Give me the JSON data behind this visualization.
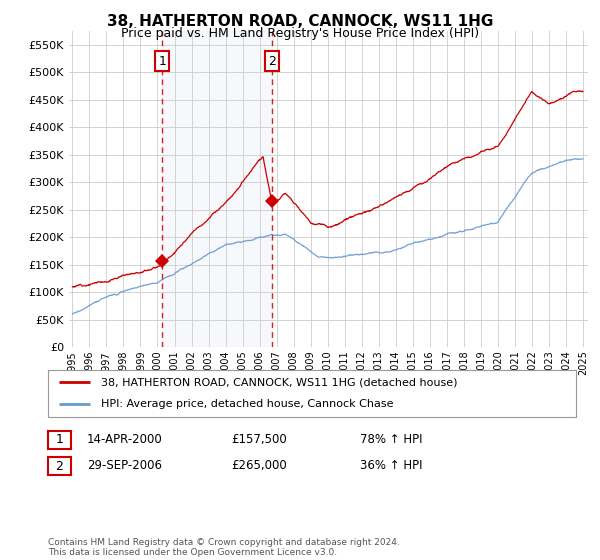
{
  "title": "38, HATHERTON ROAD, CANNOCK, WS11 1HG",
  "subtitle": "Price paid vs. HM Land Registry's House Price Index (HPI)",
  "legend_line1": "38, HATHERTON ROAD, CANNOCK, WS11 1HG (detached house)",
  "legend_line2": "HPI: Average price, detached house, Cannock Chase",
  "sale1_date": "14-APR-2000",
  "sale1_price": "£157,500",
  "sale1_hpi": "78% ↑ HPI",
  "sale2_date": "29-SEP-2006",
  "sale2_price": "£265,000",
  "sale2_hpi": "36% ↑ HPI",
  "footnote": "Contains HM Land Registry data © Crown copyright and database right 2024.\nThis data is licensed under the Open Government Licence v3.0.",
  "ylim": [
    0,
    575000
  ],
  "yticks": [
    0,
    50000,
    100000,
    150000,
    200000,
    250000,
    300000,
    350000,
    400000,
    450000,
    500000,
    550000
  ],
  "hpi_color": "#6699cc",
  "price_color": "#cc0000",
  "vline_color": "#cc0000",
  "background_color": "#ffffff",
  "grid_color": "#cccccc",
  "sale1_x": 2000.29,
  "sale1_y": 157500,
  "sale2_x": 2006.75,
  "sale2_y": 265000,
  "xmin": 1994.8,
  "xmax": 2025.3
}
